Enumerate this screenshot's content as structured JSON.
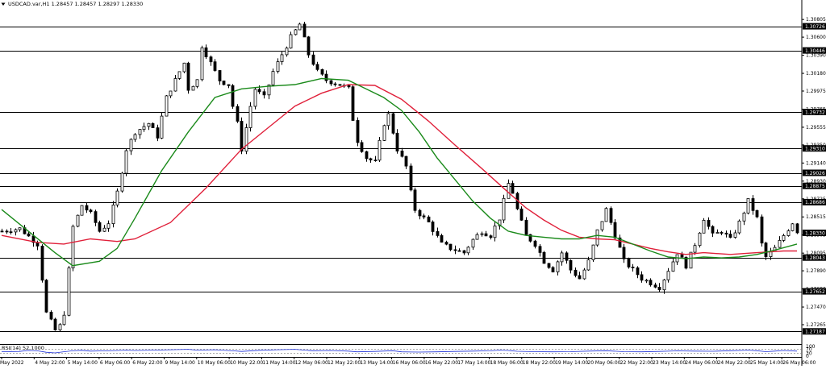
{
  "header": {
    "menu_icon": "triangle-down-icon",
    "title": "USDCAD.var,H1  1.28457 1.28457 1.28297 1.28330"
  },
  "rsi": {
    "label": "RSI(14) 52.1000",
    "value": 52.1,
    "levels": [
      30,
      70
    ],
    "scale_labels": [
      "100",
      "70",
      "30",
      "0"
    ]
  },
  "colors": {
    "background": "#ffffff",
    "bull_candle": "#000000",
    "bear_candle": "#000000",
    "ma_fast": "#1a8a1a",
    "ma_slow": "#e0203a",
    "rsi_line": "#1c2fd8",
    "level_line": "#000000",
    "price_box_bg": "#000000",
    "price_box_text": "#ffffff"
  },
  "chart_data": {
    "type": "candlestick",
    "symbol": "USDCAD.var",
    "timeframe": "H1",
    "ohlc_current": {
      "open": 1.28457,
      "high": 1.28457,
      "low": 1.28297,
      "close": 1.2833
    },
    "y_tick_labels": [
      "1.30805",
      "1.30600",
      "1.30390",
      "1.30180",
      "1.29975",
      "1.29765",
      "1.29555",
      "1.29350",
      "1.29140",
      "1.28930",
      "1.28725",
      "1.28515",
      "1.28305",
      "1.28095",
      "1.27890",
      "1.27680",
      "1.27470",
      "1.27265"
    ],
    "ylim": [
      1.2705,
      1.309
    ],
    "horizontal_levels": [
      1.30726,
      1.30446,
      1.29732,
      1.2931,
      1.29026,
      1.28875,
      1.28686,
      1.28043,
      1.27652,
      1.27187
    ],
    "current_price": 1.2833,
    "x_tick_labels": [
      "May 2022",
      "4 May 22:00",
      "5 May 14:00",
      "6 May 06:00",
      "6 May 22:00",
      "9 May 14:00",
      "10 May 06:00",
      "10 May 22:00",
      "11 May 14:00",
      "12 May 06:00",
      "12 May 22:00",
      "13 May 14:00",
      "16 May 06:00",
      "16 May 22:00",
      "17 May 14:00",
      "18 May 06:00",
      "18 May 22:00",
      "19 May 14:00",
      "20 May 06:00",
      "22 May 22:00",
      "23 May 14:00",
      "24 May 06:00",
      "24 May 22:00",
      "25 May 14:00",
      "26 May 06:00"
    ],
    "price_path": [
      [
        0,
        1.2835
      ],
      [
        4,
        1.2838
      ],
      [
        8,
        1.282
      ],
      [
        9,
        1.278
      ],
      [
        10,
        1.274
      ],
      [
        12,
        1.272
      ],
      [
        13,
        1.2725
      ],
      [
        14,
        1.274
      ],
      [
        15,
        1.279
      ],
      [
        16,
        1.284
      ],
      [
        18,
        1.2865
      ],
      [
        20,
        1.2855
      ],
      [
        22,
        1.2835
      ],
      [
        24,
        1.2845
      ],
      [
        26,
        1.288
      ],
      [
        28,
        1.293
      ],
      [
        30,
        1.295
      ],
      [
        33,
        1.296
      ],
      [
        35,
        1.2945
      ],
      [
        37,
        1.299
      ],
      [
        39,
        1.301
      ],
      [
        41,
        1.303
      ],
      [
        42,
        1.3
      ],
      [
        44,
        1.301
      ],
      [
        45,
        1.305
      ],
      [
        47,
        1.303
      ],
      [
        49,
        1.301
      ],
      [
        51,
        1.3005
      ],
      [
        52,
        1.298
      ],
      [
        53,
        1.296
      ],
      [
        54,
        1.293
      ],
      [
        56,
        1.298
      ],
      [
        57,
        1.3
      ],
      [
        59,
        1.299
      ],
      [
        61,
        1.302
      ],
      [
        63,
        1.304
      ],
      [
        65,
        1.306
      ],
      [
        67,
        1.3075
      ],
      [
        69,
        1.304
      ],
      [
        71,
        1.302
      ],
      [
        73,
        1.301
      ],
      [
        76,
        1.3005
      ],
      [
        78,
        1.3
      ],
      [
        79,
        1.2965
      ],
      [
        80,
        1.294
      ],
      [
        82,
        1.292
      ],
      [
        84,
        1.2915
      ],
      [
        86,
        1.296
      ],
      [
        87,
        1.297
      ],
      [
        89,
        1.293
      ],
      [
        91,
        1.291
      ],
      [
        92,
        1.288
      ],
      [
        93,
        1.286
      ],
      [
        96,
        1.2845
      ],
      [
        99,
        1.282
      ],
      [
        101,
        1.2815
      ],
      [
        104,
        1.281
      ],
      [
        106,
        1.2825
      ],
      [
        108,
        1.2835
      ],
      [
        110,
        1.283
      ],
      [
        112,
        1.285
      ],
      [
        114,
        1.289
      ],
      [
        115,
        1.288
      ],
      [
        116,
        1.286
      ],
      [
        118,
        1.283
      ],
      [
        120,
        1.282
      ],
      [
        122,
        1.28
      ],
      [
        124,
        1.279
      ],
      [
        126,
        1.281
      ],
      [
        128,
        1.279
      ],
      [
        130,
        1.278
      ],
      [
        132,
        1.28
      ],
      [
        134,
        1.2835
      ],
      [
        136,
        1.286
      ],
      [
        138,
        1.283
      ],
      [
        140,
        1.28
      ],
      [
        142,
        1.279
      ],
      [
        144,
        1.278
      ],
      [
        146,
        1.2775
      ],
      [
        148,
        1.277
      ],
      [
        150,
        1.279
      ],
      [
        152,
        1.281
      ],
      [
        154,
        1.2795
      ],
      [
        156,
        1.282
      ],
      [
        158,
        1.285
      ],
      [
        160,
        1.283
      ],
      [
        162,
        1.2835
      ],
      [
        164,
        1.2825
      ],
      [
        166,
        1.2845
      ],
      [
        168,
        1.287
      ],
      [
        170,
        1.285
      ],
      [
        171,
        1.282
      ],
      [
        172,
        1.2805
      ],
      [
        174,
        1.2815
      ],
      [
        176,
        1.283
      ],
      [
        178,
        1.2845
      ],
      [
        179,
        1.2833
      ]
    ],
    "ma_fast_path": [
      [
        0,
        1.286
      ],
      [
        6,
        1.2835
      ],
      [
        12,
        1.281
      ],
      [
        16,
        1.2795
      ],
      [
        22,
        1.28
      ],
      [
        26,
        1.2815
      ],
      [
        30,
        1.285
      ],
      [
        36,
        1.2905
      ],
      [
        42,
        1.295
      ],
      [
        48,
        1.299
      ],
      [
        54,
        1.3
      ],
      [
        60,
        1.3003
      ],
      [
        66,
        1.3005
      ],
      [
        72,
        1.3012
      ],
      [
        78,
        1.301
      ],
      [
        82,
        1.3
      ],
      [
        86,
        1.299
      ],
      [
        90,
        1.2975
      ],
      [
        94,
        1.295
      ],
      [
        98,
        1.292
      ],
      [
        102,
        1.2895
      ],
      [
        106,
        1.287
      ],
      [
        110,
        1.285
      ],
      [
        114,
        1.2835
      ],
      [
        118,
        1.283
      ],
      [
        122,
        1.2828
      ],
      [
        126,
        1.2826
      ],
      [
        130,
        1.2826
      ],
      [
        134,
        1.283
      ],
      [
        138,
        1.2828
      ],
      [
        142,
        1.282
      ],
      [
        146,
        1.2812
      ],
      [
        150,
        1.2805
      ],
      [
        154,
        1.2803
      ],
      [
        158,
        1.2805
      ],
      [
        162,
        1.2804
      ],
      [
        166,
        1.2805
      ],
      [
        170,
        1.2808
      ],
      [
        174,
        1.2813
      ],
      [
        179,
        1.282
      ]
    ],
    "ma_slow_path": [
      [
        0,
        1.283
      ],
      [
        8,
        1.2822
      ],
      [
        14,
        1.282
      ],
      [
        20,
        1.2826
      ],
      [
        26,
        1.2823
      ],
      [
        30,
        1.2826
      ],
      [
        38,
        1.2845
      ],
      [
        46,
        1.2885
      ],
      [
        54,
        1.293
      ],
      [
        60,
        1.2955
      ],
      [
        66,
        1.298
      ],
      [
        72,
        1.2995
      ],
      [
        78,
        1.3005
      ],
      [
        84,
        1.3004
      ],
      [
        90,
        1.2988
      ],
      [
        96,
        1.2963
      ],
      [
        102,
        1.2935
      ],
      [
        108,
        1.2908
      ],
      [
        114,
        1.288
      ],
      [
        118,
        1.2862
      ],
      [
        122,
        1.2848
      ],
      [
        126,
        1.2836
      ],
      [
        130,
        1.2828
      ],
      [
        134,
        1.2826
      ],
      [
        138,
        1.2825
      ],
      [
        142,
        1.282
      ],
      [
        146,
        1.2815
      ],
      [
        150,
        1.2811
      ],
      [
        154,
        1.2808
      ],
      [
        158,
        1.281
      ],
      [
        164,
        1.2808
      ],
      [
        170,
        1.281
      ],
      [
        176,
        1.2812
      ],
      [
        179,
        1.2812
      ]
    ],
    "rsi_path": [
      [
        0,
        45
      ],
      [
        4,
        48
      ],
      [
        6,
        58
      ],
      [
        8,
        55
      ],
      [
        10,
        40
      ],
      [
        12,
        33
      ],
      [
        14,
        45
      ],
      [
        16,
        55
      ],
      [
        18,
        60
      ],
      [
        20,
        52
      ],
      [
        24,
        55
      ],
      [
        28,
        62
      ],
      [
        30,
        58
      ],
      [
        34,
        62
      ],
      [
        38,
        66
      ],
      [
        42,
        70
      ],
      [
        44,
        62
      ],
      [
        48,
        66
      ],
      [
        52,
        55
      ],
      [
        54,
        48
      ],
      [
        58,
        60
      ],
      [
        62,
        66
      ],
      [
        66,
        70
      ],
      [
        70,
        56
      ],
      [
        74,
        58
      ],
      [
        78,
        52
      ],
      [
        80,
        44
      ],
      [
        84,
        48
      ],
      [
        88,
        56
      ],
      [
        90,
        44
      ],
      [
        94,
        42
      ],
      [
        98,
        44
      ],
      [
        102,
        48
      ],
      [
        106,
        52
      ],
      [
        110,
        55
      ],
      [
        112,
        62
      ],
      [
        114,
        58
      ],
      [
        116,
        50
      ],
      [
        120,
        46
      ],
      [
        124,
        44
      ],
      [
        128,
        46
      ],
      [
        132,
        52
      ],
      [
        136,
        56
      ],
      [
        140,
        46
      ],
      [
        144,
        44
      ],
      [
        148,
        48
      ],
      [
        152,
        54
      ],
      [
        156,
        52
      ],
      [
        160,
        50
      ],
      [
        164,
        56
      ],
      [
        168,
        62
      ],
      [
        170,
        56
      ],
      [
        172,
        46
      ],
      [
        174,
        52
      ],
      [
        176,
        58
      ],
      [
        179,
        52
      ]
    ]
  }
}
